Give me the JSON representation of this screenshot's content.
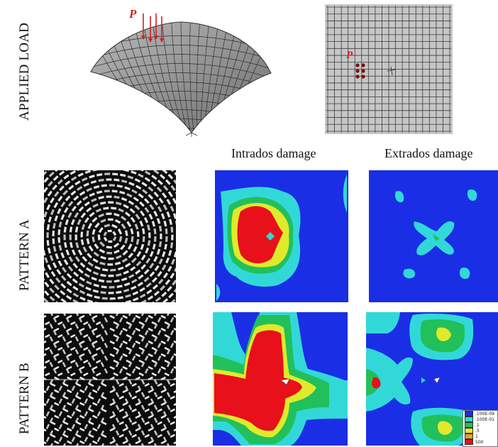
{
  "row_labels": {
    "applied_load": "APPLIED LOAD",
    "pattern_a": "PATTERN A",
    "pattern_b": "PATTERN B"
  },
  "column_titles": {
    "intrados": "Intrados damage",
    "extrados": "Extrados damage"
  },
  "load_symbol": "P",
  "colors": {
    "blue": "#1a2ee6",
    "cyan": "#32d8d8",
    "green": "#22c05a",
    "yellow": "#e0ea2a",
    "red": "#e8101a",
    "load_red": "#d42020"
  },
  "legend": {
    "entries": [
      {
        "label": ".100E-09",
        "color": "#1a2ee6"
      },
      {
        "label": ".100E-01",
        "color": "#32d8d8"
      },
      {
        "label": ".1",
        "color": "#22c05a"
      },
      {
        "label": ".5",
        "color": "#e0ea2a"
      },
      {
        "label": "1",
        "color": "#e8a020"
      },
      {
        "label": "500",
        "color": "#e8101a"
      }
    ]
  }
}
